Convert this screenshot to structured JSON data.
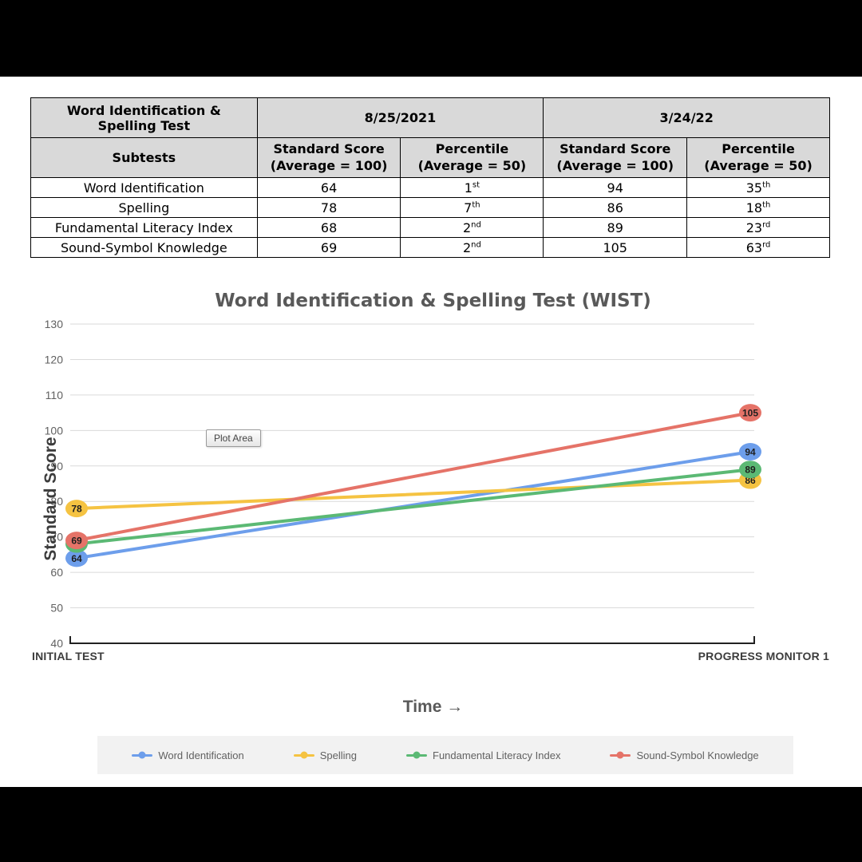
{
  "table": {
    "corner_header": "Word Identification & Spelling Test",
    "dates": [
      "8/25/2021",
      "3/24/22"
    ],
    "subheaders": {
      "subtests": "Subtests",
      "standard_score": "Standard Score\n(Average = 100)",
      "percentile": "Percentile\n(Average = 50)"
    },
    "rows": [
      {
        "subtest": "Word Identification",
        "s1": "64",
        "p1": "1st",
        "s2": "94",
        "p2": "35th"
      },
      {
        "subtest": "Spelling",
        "s1": "78",
        "p1": "7th",
        "s2": "86",
        "p2": "18th"
      },
      {
        "subtest": "Fundamental Literacy Index",
        "s1": "68",
        "p1": "2nd",
        "s2": "89",
        "p2": "23rd"
      },
      {
        "subtest": "Sound-Symbol Knowledge",
        "s1": "69",
        "p1": "2nd",
        "s2": "105",
        "p2": "63rd"
      }
    ]
  },
  "chart_data": {
    "type": "line",
    "title": "Word Identification & Spelling Test (WIST)",
    "xlabel": "Time →",
    "ylabel": "Standard Score",
    "categories": [
      "INITIAL TEST",
      "PROGRESS MONITOR 1"
    ],
    "ylim": [
      40,
      130
    ],
    "ytick_step": 10,
    "grid": "horizontal",
    "legend_position": "bottom",
    "plot_area_tooltip": "Plot Area",
    "series": [
      {
        "name": "Word Identification",
        "color": "#6d9eeb",
        "values": [
          64,
          94
        ]
      },
      {
        "name": "Spelling",
        "color": "#f5c342",
        "values": [
          78,
          86
        ]
      },
      {
        "name": "Fundamental Literacy Index",
        "color": "#5bb974",
        "values": [
          68,
          89
        ]
      },
      {
        "name": "Sound-Symbol Knowledge",
        "color": "#e57368",
        "values": [
          69,
          105
        ]
      }
    ]
  }
}
